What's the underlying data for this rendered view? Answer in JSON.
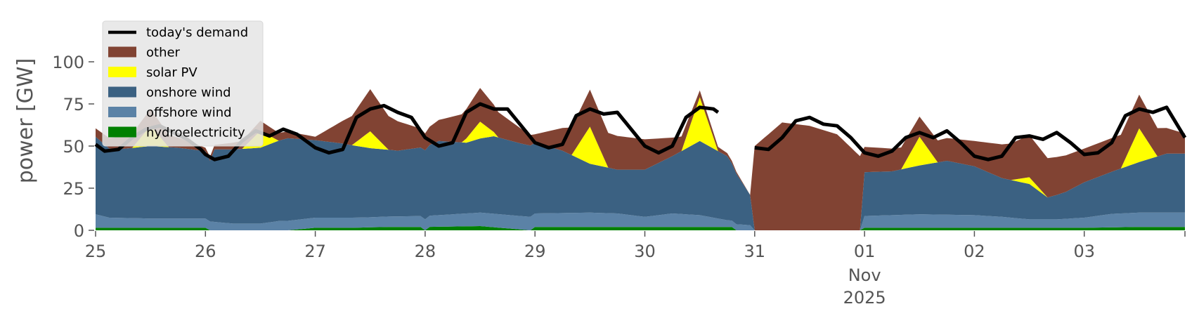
{
  "chart_data": {
    "type": "area",
    "ylabel": "power [GW]",
    "ylim": [
      0,
      120
    ],
    "yticks": [
      0,
      25,
      50,
      75,
      100
    ],
    "xlim": [
      "2025-10-25 00:00",
      "2025-11-03 22:00"
    ],
    "x_tick_labels": [
      "25",
      "26",
      "27",
      "28",
      "29",
      "30",
      "31",
      "01",
      "02",
      "03"
    ],
    "x_tick_dates": [
      "2025-10-25",
      "2025-10-26",
      "2025-10-27",
      "2025-10-28",
      "2025-10-29",
      "2025-10-30",
      "2025-10-31",
      "2025-11-01",
      "2025-11-02",
      "2025-11-03"
    ],
    "x_month_label": "Nov",
    "x_year_label": "2025",
    "legend": {
      "placement": "upper-left"
    },
    "grid": false,
    "series": [
      {
        "name": "hydroelectricity",
        "color": "#008000",
        "points": [
          [
            "2025-10-25 00:00",
            1.5
          ],
          [
            "2025-10-25 06:00",
            1.5
          ],
          [
            "2025-10-26 00:00",
            1.5
          ],
          [
            "2025-10-26 00:20",
            0
          ],
          [
            "2025-10-26 02:00",
            0
          ],
          [
            "2025-10-26 18:00",
            0
          ],
          [
            "2025-10-27 00:00",
            1.5
          ],
          [
            "2025-10-27 08:00",
            1.5
          ],
          [
            "2025-10-27 16:00",
            2
          ],
          [
            "2025-10-27 23:00",
            2
          ],
          [
            "2025-10-28 00:00",
            0
          ],
          [
            "2025-10-28 23:00",
            0
          ],
          [
            "2025-10-28 00:00",
            0
          ],
          [
            "2025-10-28 00:30",
            2
          ],
          [
            "2025-10-28 12:00",
            2.5
          ],
          [
            "2025-10-29 00:00",
            2
          ],
          [
            "2025-10-29 12:00",
            2
          ],
          [
            "2025-10-30 00:00",
            2
          ],
          [
            "2025-10-30 12:00",
            2
          ],
          [
            "2025-10-30 19:00",
            2
          ],
          [
            "2025-10-30 20:00",
            0
          ],
          [
            "2025-10-31 00:00",
            0
          ],
          [
            "2025-10-31 23:00",
            0
          ],
          [
            "2025-11-01 00:00",
            1.5
          ],
          [
            "2025-11-01 12:00",
            1.5
          ],
          [
            "2025-11-02 00:00",
            1.5
          ],
          [
            "2025-11-02 12:00",
            1.5
          ],
          [
            "2025-11-03 00:00",
            1.5
          ],
          [
            "2025-11-03 12:00",
            2
          ],
          [
            "2025-11-03 22:00",
            2
          ]
        ]
      },
      {
        "name": "offshore wind",
        "color": "#5b82a6",
        "points": [
          [
            "2025-10-25 00:00",
            8
          ],
          [
            "2025-10-25 03:00",
            6
          ],
          [
            "2025-10-25 12:00",
            5.5
          ],
          [
            "2025-10-26 00:00",
            5.5
          ],
          [
            "2025-10-26 06:00",
            4
          ],
          [
            "2025-10-26 12:00",
            4
          ],
          [
            "2025-10-26 16:00",
            5.5
          ],
          [
            "2025-10-27 00:00",
            6
          ],
          [
            "2025-10-27 12:00",
            6
          ],
          [
            "2025-10-28 00:00",
            6.5
          ],
          [
            "2025-10-28 12:00",
            8
          ],
          [
            "2025-10-29 00:00",
            8
          ],
          [
            "2025-10-29 12:00",
            8.5
          ],
          [
            "2025-10-29 18:00",
            8
          ],
          [
            "2025-10-30 00:00",
            6
          ],
          [
            "2025-10-30 06:00",
            8
          ],
          [
            "2025-10-30 12:00",
            7
          ],
          [
            "2025-10-30 18:00",
            4
          ],
          [
            "2025-10-30 23:00",
            3
          ],
          [
            "2025-10-31 00:00",
            0
          ],
          [
            "2025-10-31 23:00",
            0
          ],
          [
            "2025-11-01 00:00",
            7
          ],
          [
            "2025-11-01 12:00",
            8
          ],
          [
            "2025-11-02 00:00",
            7.5
          ],
          [
            "2025-11-02 06:00",
            6.5
          ],
          [
            "2025-11-02 12:00",
            5
          ],
          [
            "2025-11-02 18:00",
            5
          ],
          [
            "2025-11-03 00:00",
            6
          ],
          [
            "2025-11-03 06:00",
            8
          ],
          [
            "2025-11-03 12:00",
            8.5
          ],
          [
            "2025-11-03 22:00",
            8.5
          ]
        ]
      },
      {
        "name": "onshore wind",
        "color": "#3b6182",
        "points": [
          [
            "2025-10-25 00:00",
            46
          ],
          [
            "2025-10-25 03:00",
            41
          ],
          [
            "2025-10-25 06:00",
            41
          ],
          [
            "2025-10-25 12:00",
            43
          ],
          [
            "2025-10-25 18:00",
            42
          ],
          [
            "2025-10-26 00:00",
            40
          ],
          [
            "2025-10-26 01:00",
            36
          ],
          [
            "2025-10-26 02:00",
            43
          ],
          [
            "2025-10-26 06:00",
            44
          ],
          [
            "2025-10-26 12:00",
            45
          ],
          [
            "2025-10-26 18:00",
            49
          ],
          [
            "2025-10-27 00:00",
            46
          ],
          [
            "2025-10-27 06:00",
            44
          ],
          [
            "2025-10-27 12:00",
            41
          ],
          [
            "2025-10-27 18:00",
            39
          ],
          [
            "2025-10-28 00:00",
            41
          ],
          [
            "2025-10-28 03:00",
            44
          ],
          [
            "2025-10-28 09:00",
            42
          ],
          [
            "2025-10-28 15:00",
            46
          ],
          [
            "2025-10-28 21:00",
            43
          ],
          [
            "2025-10-29 00:00",
            42
          ],
          [
            "2025-10-29 06:00",
            37
          ],
          [
            "2025-10-29 12:00",
            29
          ],
          [
            "2025-10-29 18:00",
            26
          ],
          [
            "2025-10-30 00:00",
            28
          ],
          [
            "2025-10-30 06:00",
            34
          ],
          [
            "2025-10-30 12:00",
            44
          ],
          [
            "2025-10-30 18:00",
            38
          ],
          [
            "2025-10-30 23:00",
            18
          ],
          [
            "2025-10-31 00:00",
            0
          ],
          [
            "2025-10-31 23:00",
            0
          ],
          [
            "2025-11-01 00:00",
            26
          ],
          [
            "2025-11-01 06:00",
            26
          ],
          [
            "2025-11-01 12:00",
            29
          ],
          [
            "2025-11-01 18:00",
            32
          ],
          [
            "2025-11-02 00:00",
            29
          ],
          [
            "2025-11-02 06:00",
            23
          ],
          [
            "2025-11-02 12:00",
            21
          ],
          [
            "2025-11-02 16:00",
            13
          ],
          [
            "2025-11-02 20:00",
            16
          ],
          [
            "2025-11-03 00:00",
            21
          ],
          [
            "2025-11-03 06:00",
            25
          ],
          [
            "2025-11-03 12:00",
            30
          ],
          [
            "2025-11-03 18:00",
            35
          ],
          [
            "2025-11-03 22:00",
            35
          ]
        ]
      },
      {
        "name": "solar PV",
        "color": "#ffff00",
        "points": [
          [
            "2025-10-25 00:00",
            0
          ],
          [
            "2025-10-25 08:00",
            0
          ],
          [
            "2025-10-25 12:00",
            12
          ],
          [
            "2025-10-25 16:00",
            0
          ],
          [
            "2025-10-26 00:00",
            0
          ],
          [
            "2025-10-26 08:00",
            0
          ],
          [
            "2025-10-26 12:00",
            10
          ],
          [
            "2025-10-26 16:00",
            0
          ],
          [
            "2025-10-27 00:00",
            0
          ],
          [
            "2025-10-27 08:00",
            0
          ],
          [
            "2025-10-27 12:00",
            10
          ],
          [
            "2025-10-27 16:00",
            0
          ],
          [
            "2025-10-28 00:00",
            0
          ],
          [
            "2025-10-28 08:00",
            0
          ],
          [
            "2025-10-28 12:00",
            10
          ],
          [
            "2025-10-28 16:00",
            0
          ],
          [
            "2025-10-29 00:00",
            0
          ],
          [
            "2025-10-29 08:00",
            0
          ],
          [
            "2025-10-29 12:00",
            22
          ],
          [
            "2025-10-29 16:00",
            0
          ],
          [
            "2025-10-30 00:00",
            0
          ],
          [
            "2025-10-30 08:00",
            0
          ],
          [
            "2025-10-30 12:00",
            26
          ],
          [
            "2025-10-30 16:00",
            0
          ],
          [
            "2025-10-31 00:00",
            0
          ],
          [
            "2025-10-31 23:00",
            0
          ],
          [
            "2025-11-01 00:00",
            0
          ],
          [
            "2025-11-01 08:00",
            0
          ],
          [
            "2025-11-01 12:00",
            17
          ],
          [
            "2025-11-01 16:00",
            0
          ],
          [
            "2025-11-02 00:00",
            0
          ],
          [
            "2025-11-02 08:00",
            0
          ],
          [
            "2025-11-02 12:00",
            4
          ],
          [
            "2025-11-02 16:00",
            0
          ],
          [
            "2025-11-03 00:00",
            0
          ],
          [
            "2025-11-03 08:00",
            0
          ],
          [
            "2025-11-03 12:00",
            20
          ],
          [
            "2025-11-03 16:00",
            0
          ],
          [
            "2025-11-03 22:00",
            0
          ]
        ]
      },
      {
        "name": "other",
        "color": "#814333",
        "points": [
          [
            "2025-10-25 00:00",
            5
          ],
          [
            "2025-10-25 12:00",
            10
          ],
          [
            "2025-10-26 00:00",
            2
          ],
          [
            "2025-10-26 12:00",
            6
          ],
          [
            "2025-10-27 00:00",
            2
          ],
          [
            "2025-10-27 12:00",
            25
          ],
          [
            "2025-10-28 00:00",
            10
          ],
          [
            "2025-10-28 12:00",
            20
          ],
          [
            "2025-10-29 00:00",
            5
          ],
          [
            "2025-10-29 12:00",
            22
          ],
          [
            "2025-10-30 00:00",
            18
          ],
          [
            "2025-10-30 12:00",
            4
          ],
          [
            "2025-10-30 23:00",
            0
          ],
          [
            "2025-10-31 00:00",
            50
          ],
          [
            "2025-10-31 06:00",
            64
          ],
          [
            "2025-10-31 12:00",
            62
          ],
          [
            "2025-10-31 18:00",
            57
          ],
          [
            "2025-10-31 23:00",
            44
          ],
          [
            "2025-11-01 00:00",
            15
          ],
          [
            "2025-11-01 12:00",
            12
          ],
          [
            "2025-11-02 00:00",
            15
          ],
          [
            "2025-11-02 12:00",
            25
          ],
          [
            "2025-11-03 00:00",
            20
          ],
          [
            "2025-11-03 12:00",
            20
          ],
          [
            "2025-11-03 22:00",
            12
          ]
        ]
      },
      {
        "name": "today's demand",
        "color": "#000000",
        "style": "line",
        "points": [
          [
            "2025-10-25 00:00",
            51
          ],
          [
            "2025-10-25 02:00",
            47
          ],
          [
            "2025-10-25 05:00",
            48
          ],
          [
            "2025-10-25 08:00",
            55
          ],
          [
            "2025-10-25 11:00",
            60
          ],
          [
            "2025-10-25 14:00",
            62
          ],
          [
            "2025-10-25 17:00",
            58
          ],
          [
            "2025-10-25 20:00",
            54
          ],
          [
            "2025-10-25 23:00",
            48
          ],
          [
            "2025-10-26 00:00",
            45
          ],
          [
            "2025-10-26 02:00",
            42
          ],
          [
            "2025-10-26 05:00",
            44
          ],
          [
            "2025-10-26 08:00",
            53
          ],
          [
            "2025-10-26 11:00",
            59
          ],
          [
            "2025-10-26 14:00",
            56
          ],
          [
            "2025-10-26 17:00",
            60
          ],
          [
            "2025-10-26 20:00",
            57
          ],
          [
            "2025-10-27 00:00",
            49
          ],
          [
            "2025-10-27 03:00",
            46
          ],
          [
            "2025-10-27 06:00",
            48
          ],
          [
            "2025-10-27 09:00",
            67
          ],
          [
            "2025-10-27 12:00",
            72
          ],
          [
            "2025-10-27 15:00",
            74
          ],
          [
            "2025-10-27 18:00",
            70
          ],
          [
            "2025-10-27 21:00",
            67
          ],
          [
            "2025-10-28 00:00",
            55
          ],
          [
            "2025-10-28 03:00",
            50
          ],
          [
            "2025-10-28 06:00",
            52
          ],
          [
            "2025-10-28 09:00",
            70
          ],
          [
            "2025-10-28 12:00",
            75
          ],
          [
            "2025-10-28 15:00",
            72
          ],
          [
            "2025-10-28 18:00",
            72
          ],
          [
            "2025-10-28 21:00",
            62
          ],
          [
            "2025-10-29 00:00",
            52
          ],
          [
            "2025-10-29 03:00",
            49
          ],
          [
            "2025-10-29 06:00",
            51
          ],
          [
            "2025-10-29 09:00",
            68
          ],
          [
            "2025-10-29 12:00",
            72
          ],
          [
            "2025-10-29 15:00",
            69
          ],
          [
            "2025-10-29 18:00",
            70
          ],
          [
            "2025-10-29 21:00",
            60
          ],
          [
            "2025-10-30 00:00",
            50
          ],
          [
            "2025-10-30 03:00",
            46
          ],
          [
            "2025-10-30 06:00",
            50
          ],
          [
            "2025-10-30 09:00",
            67
          ],
          [
            "2025-10-30 12:00",
            73
          ],
          [
            "2025-10-30 15:00",
            72
          ],
          [
            "2025-10-30 16:00",
            70
          ],
          [
            "2025-10-31 00:00",
            49
          ],
          [
            "2025-10-31 03:00",
            48
          ],
          [
            "2025-10-31 06:00",
            55
          ],
          [
            "2025-10-31 09:00",
            65
          ],
          [
            "2025-10-31 12:00",
            67
          ],
          [
            "2025-10-31 15:00",
            63
          ],
          [
            "2025-10-31 18:00",
            62
          ],
          [
            "2025-10-31 21:00",
            55
          ],
          [
            "2025-11-01 00:00",
            46
          ],
          [
            "2025-11-01 03:00",
            44
          ],
          [
            "2025-11-01 06:00",
            47
          ],
          [
            "2025-11-01 09:00",
            55
          ],
          [
            "2025-11-01 12:00",
            58
          ],
          [
            "2025-11-01 15:00",
            55
          ],
          [
            "2025-11-01 18:00",
            59
          ],
          [
            "2025-11-01 21:00",
            52
          ],
          [
            "2025-11-02 00:00",
            44
          ],
          [
            "2025-11-02 03:00",
            42
          ],
          [
            "2025-11-02 06:00",
            44
          ],
          [
            "2025-11-02 09:00",
            55
          ],
          [
            "2025-11-02 12:00",
            56
          ],
          [
            "2025-11-02 15:00",
            54
          ],
          [
            "2025-11-02 18:00",
            58
          ],
          [
            "2025-11-02 21:00",
            52
          ],
          [
            "2025-11-03 00:00",
            45
          ],
          [
            "2025-11-03 03:00",
            46
          ],
          [
            "2025-11-03 06:00",
            52
          ],
          [
            "2025-11-03 09:00",
            68
          ],
          [
            "2025-11-03 12:00",
            72
          ],
          [
            "2025-11-03 15:00",
            70
          ],
          [
            "2025-11-03 18:00",
            73
          ],
          [
            "2025-11-03 22:00",
            55
          ]
        ]
      }
    ]
  }
}
